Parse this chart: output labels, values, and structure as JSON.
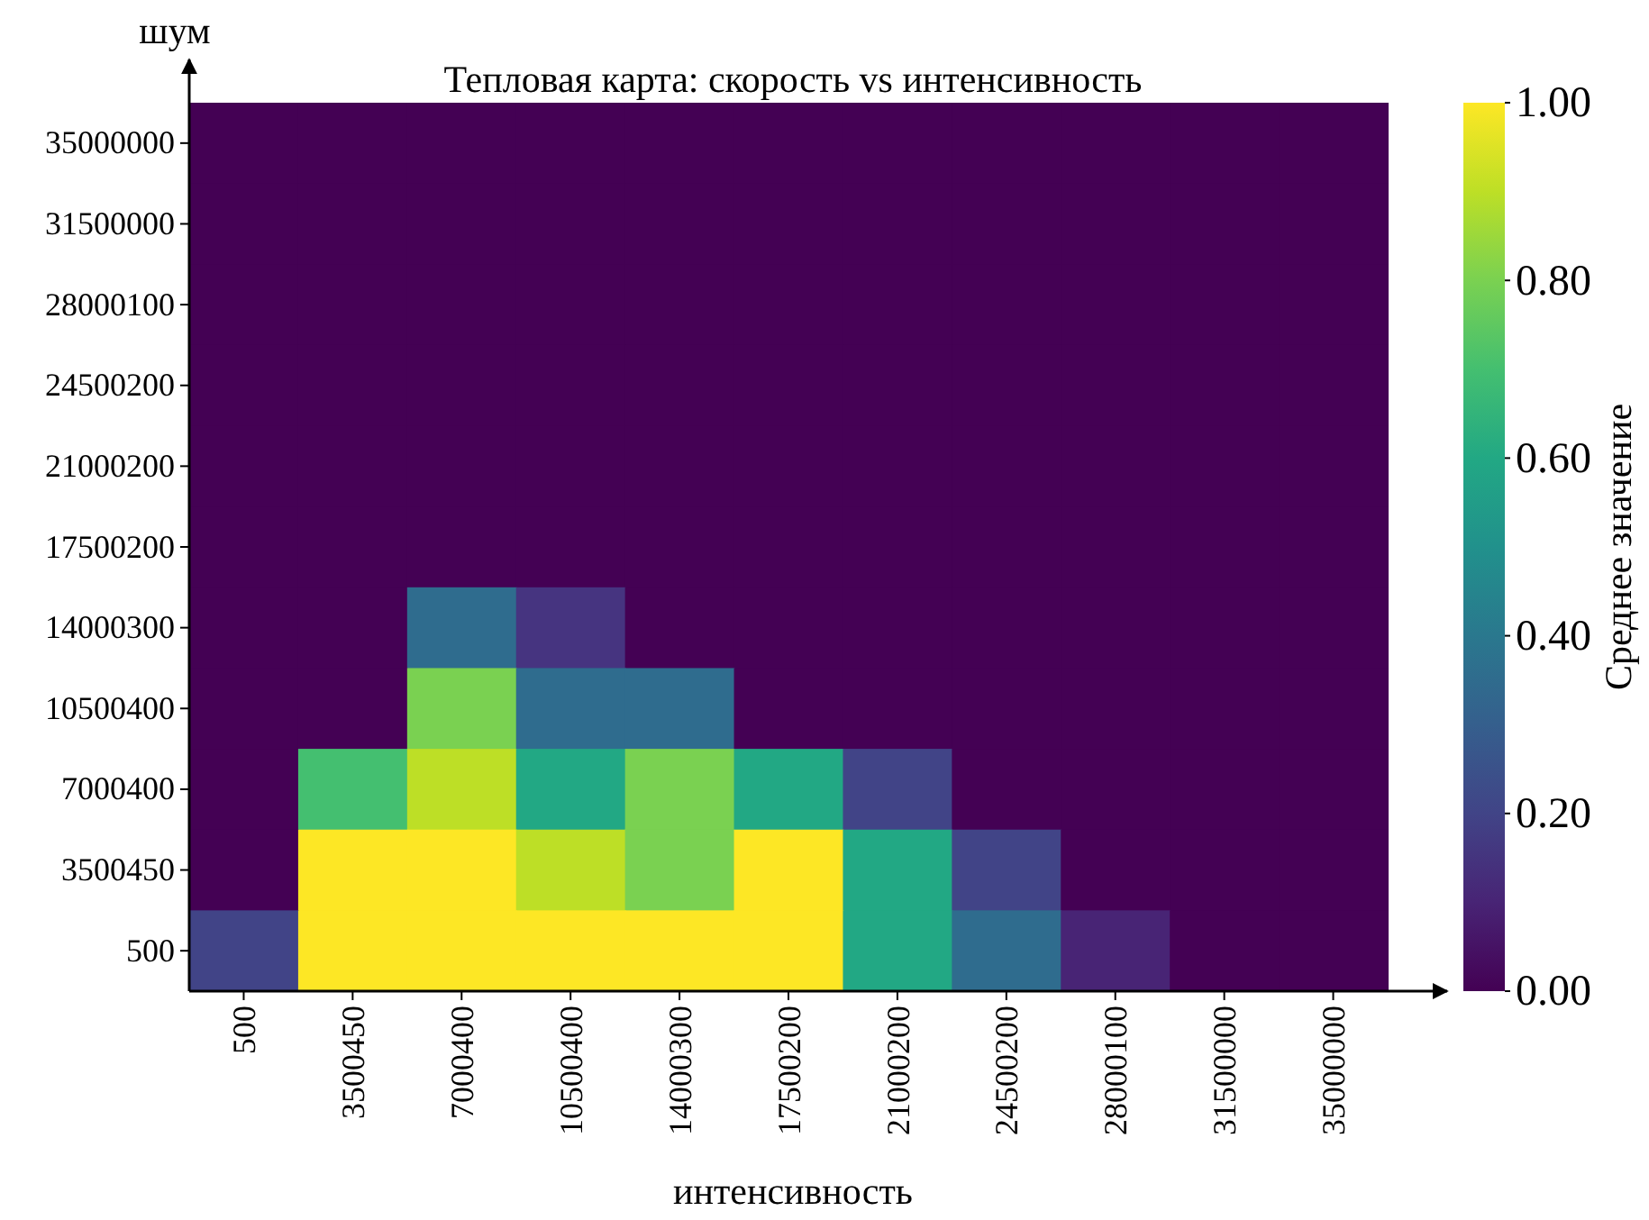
{
  "chart_data": {
    "type": "heatmap",
    "title": "Тепловая карта: скорость vs интенсивность",
    "xlabel": "интенсивность",
    "ylabel": "шум",
    "clabel": "Среднее значение",
    "categories": [
      "500",
      "3500450",
      "7000400",
      "10500400",
      "14000300",
      "17500200",
      "21000200",
      "24500200",
      "28000100",
      "31500000",
      "35000000"
    ],
    "y_categories": [
      "35000000",
      "31500000",
      "28000100",
      "24500200",
      "21000200",
      "17500200",
      "14000300",
      "10500400",
      "7000400",
      "3500450",
      "500"
    ],
    "cells": [
      [
        0,
        0,
        0,
        0,
        0,
        0,
        0,
        0,
        0,
        0,
        0
      ],
      [
        0,
        0,
        0,
        0,
        0,
        0,
        0,
        0,
        0,
        0,
        0
      ],
      [
        0,
        0,
        0,
        0,
        0,
        0,
        0,
        0,
        0,
        0,
        0
      ],
      [
        0,
        0,
        0,
        0,
        0,
        0,
        0,
        0,
        0,
        0,
        0
      ],
      [
        0,
        0,
        0,
        0,
        0,
        0,
        0,
        0,
        0,
        0,
        0
      ],
      [
        0,
        0,
        0,
        0,
        0,
        0,
        0,
        0,
        0,
        0,
        0
      ],
      [
        0,
        0,
        0.35,
        0.15,
        0,
        0,
        0,
        0,
        0,
        0,
        0
      ],
      [
        0,
        0,
        0.8,
        0.35,
        0.35,
        0,
        0,
        0,
        0,
        0,
        0
      ],
      [
        0,
        0.7,
        0.9,
        0.6,
        0.8,
        0.6,
        0.2,
        0,
        0,
        0,
        0
      ],
      [
        0,
        1,
        1,
        0.9,
        0.8,
        1,
        0.6,
        0.2,
        0,
        0,
        0
      ],
      [
        0.2,
        1,
        1,
        1,
        1,
        1,
        0.6,
        0.35,
        0.1,
        0,
        0
      ]
    ],
    "clim": [
      0,
      1
    ],
    "cticks": [
      {
        "value": 0,
        "label": "0.00"
      },
      {
        "value": 0.2,
        "label": "0.20"
      },
      {
        "value": 0.4,
        "label": "0.40"
      },
      {
        "value": 0.6,
        "label": "0.60"
      },
      {
        "value": 0.8,
        "label": "0.80"
      },
      {
        "value": 1,
        "label": "1.00"
      }
    ]
  }
}
